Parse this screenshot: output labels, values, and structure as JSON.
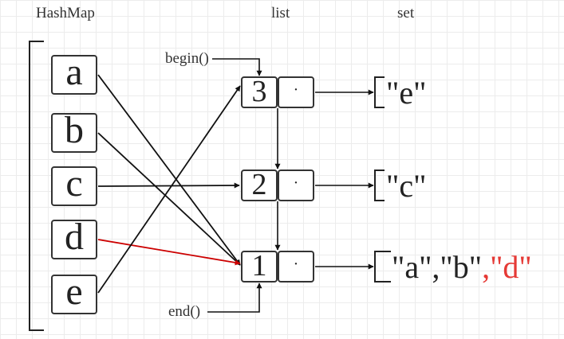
{
  "headers": {
    "hashmap": "HashMap",
    "list": "list",
    "set": "set"
  },
  "keys": [
    "a",
    "b",
    "c",
    "d",
    "e"
  ],
  "list_nodes": [
    {
      "count": "3",
      "pointer": "·"
    },
    {
      "count": "2",
      "pointer": "·"
    },
    {
      "count": "1",
      "pointer": "·"
    }
  ],
  "sets": {
    "node3": "\"e\"",
    "node2": "\"c\"",
    "node1": {
      "main": "\"a\",\"b\"",
      "added": ",\"d\""
    }
  },
  "labels": {
    "begin": "begin()",
    "end": "end()"
  },
  "colors": {
    "ink": "#222222",
    "highlight": "#cc0000",
    "added_text": "#e53935"
  },
  "edges": [
    {
      "from": "a",
      "to": "1"
    },
    {
      "from": "b",
      "to": "1"
    },
    {
      "from": "c",
      "to": "2"
    },
    {
      "from": "d",
      "to": "1",
      "highlight": true
    },
    {
      "from": "e",
      "to": "3"
    }
  ]
}
